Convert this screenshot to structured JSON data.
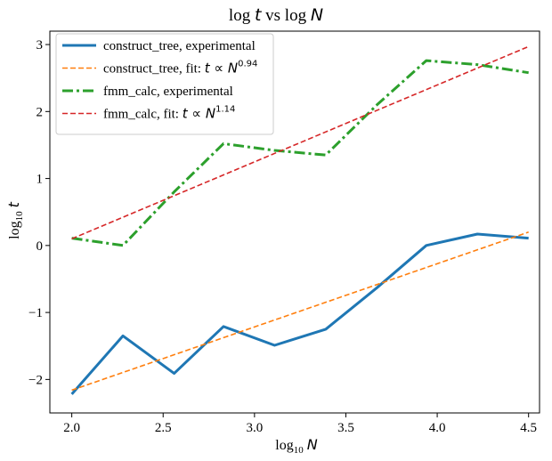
{
  "chart_data": {
    "type": "line",
    "title": "log t vs log N",
    "xlabel": "log10 N",
    "ylabel": "log10 t",
    "xlim": [
      1.88,
      4.56
    ],
    "ylim": [
      -2.5,
      3.2
    ],
    "x_ticks": [
      2.0,
      2.5,
      3.0,
      3.5,
      4.0,
      4.5
    ],
    "x_tick_labels": [
      "2.0",
      "2.5",
      "3.0",
      "3.5",
      "4.0",
      "4.5"
    ],
    "y_ticks": [
      -2,
      -1,
      0,
      1,
      2,
      3
    ],
    "y_tick_labels": [
      "−2",
      "−1",
      "0",
      "1",
      "2",
      "3"
    ],
    "grid": false,
    "legend_position": "top-left",
    "series": [
      {
        "name": "construct_tree, experimental",
        "color": "#1f77b4",
        "style": "solid",
        "x": [
          2.0,
          2.28,
          2.56,
          2.83,
          3.11,
          3.39,
          3.67,
          3.94,
          4.22,
          4.5
        ],
        "y": [
          -2.22,
          -1.35,
          -1.91,
          -1.21,
          -1.49,
          -1.25,
          -0.63,
          0.0,
          0.17,
          0.11
        ]
      },
      {
        "name": "construct_tree, fit: ",
        "math": "t ∝ N",
        "exponent": "0.94",
        "color": "#ff7f0e",
        "style": "dashed",
        "x": [
          2.0,
          4.5
        ],
        "y": [
          -2.16,
          0.2
        ]
      },
      {
        "name": "fmm_calc, experimental",
        "color": "#2ca02c",
        "style": "dashdot",
        "x": [
          2.0,
          2.28,
          2.56,
          2.83,
          3.11,
          3.39,
          3.67,
          3.94,
          4.22,
          4.5
        ],
        "y": [
          0.11,
          0.0,
          0.8,
          1.52,
          1.42,
          1.35,
          2.1,
          2.76,
          2.7,
          2.58
        ]
      },
      {
        "name": "fmm_calc, fit: ",
        "math": "t ∝ N",
        "exponent": "1.14",
        "color": "#d62728",
        "style": "dashed",
        "x": [
          2.0,
          4.5
        ],
        "y": [
          0.1,
          2.97
        ]
      }
    ]
  }
}
